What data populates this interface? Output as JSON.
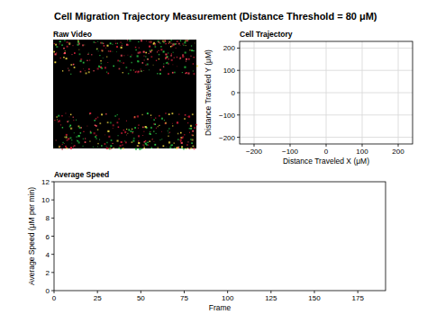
{
  "figure": {
    "title": "Cell Migration Trajectory Measurement (Distance Threshold = 80 μM)",
    "image_label": "Raw Video"
  },
  "chart_data": [
    {
      "type": "scatter",
      "title": "Cell Trajectory",
      "x_label": "Distance Traveled X (μM)",
      "y_label": "Distance Traveled Y (μM)",
      "xlim": [
        -240,
        240
      ],
      "ylim": [
        -230,
        230
      ],
      "xticks": [
        {
          "value": -200,
          "label": "−200"
        },
        {
          "value": -100,
          "label": "−100"
        },
        0,
        100,
        200
      ],
      "yticks": [
        {
          "value": -200,
          "label": "−200"
        },
        {
          "value": -100,
          "label": "−100"
        },
        0,
        100,
        200
      ],
      "grid": true,
      "series": []
    },
    {
      "type": "line",
      "title": "Average Speed",
      "x_label": "Frame",
      "y_label": "Average Speed (μM per min)",
      "xlim": [
        0,
        191
      ],
      "ylim": [
        0,
        12
      ],
      "xticks": [
        0,
        25,
        50,
        75,
        100,
        125,
        150,
        175
      ],
      "yticks": [
        0,
        2,
        4,
        6,
        8,
        10,
        12
      ],
      "grid": false,
      "series": []
    }
  ]
}
